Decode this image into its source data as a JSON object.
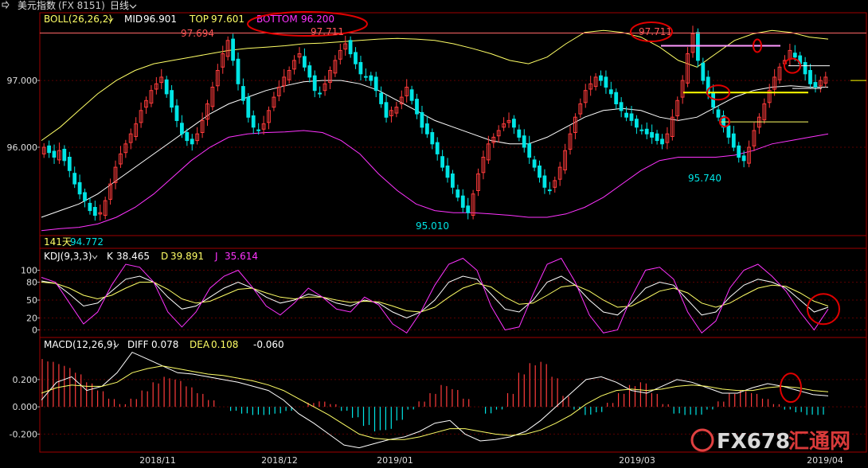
{
  "window": {
    "title": "美元指数",
    "code": "(FX 8151)",
    "period": "日线",
    "back_icon": "back-arrow-icon",
    "dropdown_icon": "chevron-down-icon"
  },
  "watermark": {
    "text": "FX678",
    "subtext": "汇通网"
  },
  "colors": {
    "background": "#000000",
    "up": "#ff3b3b",
    "down": "#00e5e5",
    "boll_mid": "#ffffff",
    "boll_top": "#ffff66",
    "boll_bottom": "#ff33ff",
    "frame": "#b00000",
    "annotation_circle": "#e00000",
    "pink_line": "#ff99ff",
    "yellow_line": "#ffff00"
  },
  "main_panel": {
    "indicator": "BOLL(26,26,2)",
    "mid_label": "MID",
    "mid_value": "96.901",
    "top_label": "TOP",
    "top_value": "97.601",
    "bottom_label": "BOTTOM",
    "bottom_value": "96.200",
    "y_ticks": [
      "97.000",
      "96.000"
    ],
    "annotations": [
      "97.694",
      "97.711",
      "97.711",
      "95.010",
      "95.740"
    ],
    "footer_days": "141天",
    "footer_value": "94.772"
  },
  "kdj_panel": {
    "indicator": "KDJ(9,3,3)",
    "k_label": "K",
    "k_value": "38.465",
    "d_label": "D",
    "d_value": "39.891",
    "j_label": "J",
    "j_value": "35.614",
    "y_ticks": [
      "100",
      "80",
      "50",
      "20",
      "0"
    ]
  },
  "macd_panel": {
    "indicator": "MACD(12,26,9)",
    "diff_label": "DIFF",
    "diff_value": "0.078",
    "dea_label": "DEA",
    "dea_value": "0.108",
    "macd_value": "-0.060",
    "y_ticks": [
      "0.200",
      "0.000",
      "-0.200"
    ]
  },
  "x_axis": {
    "ticks": [
      "2018/11",
      "2018/12",
      "2019/01",
      "2019/03",
      "2019/04"
    ]
  },
  "chart_data": [
    {
      "type": "candlestick",
      "title": "BOLL(26,26,2)",
      "ylim": [
        94.7,
        97.8
      ],
      "close": [
        96.0,
        95.92,
        95.85,
        95.95,
        95.8,
        95.65,
        95.45,
        95.3,
        95.2,
        95.05,
        94.98,
        95.02,
        95.2,
        95.45,
        95.7,
        95.9,
        96.05,
        96.2,
        96.35,
        96.55,
        96.7,
        96.85,
        96.95,
        97.05,
        96.8,
        96.6,
        96.4,
        96.2,
        96.1,
        96.05,
        96.2,
        96.4,
        96.65,
        96.9,
        97.15,
        97.4,
        97.6,
        97.3,
        96.95,
        96.7,
        96.45,
        96.3,
        96.25,
        96.35,
        96.55,
        96.75,
        96.9,
        97.05,
        97.15,
        97.3,
        97.4,
        97.2,
        97.05,
        96.85,
        96.8,
        96.95,
        97.15,
        97.3,
        97.45,
        97.55,
        97.4,
        97.25,
        97.1,
        97.05,
        97.0,
        96.85,
        96.65,
        96.45,
        96.55,
        96.6,
        96.75,
        96.9,
        96.7,
        96.5,
        96.3,
        96.2,
        96.05,
        95.9,
        95.7,
        95.55,
        95.4,
        95.25,
        95.1,
        95.02,
        95.3,
        95.6,
        95.85,
        96.05,
        96.15,
        96.25,
        96.35,
        96.4,
        96.3,
        96.15,
        96.0,
        95.85,
        95.7,
        95.55,
        95.4,
        95.35,
        95.5,
        95.7,
        95.95,
        96.2,
        96.45,
        96.65,
        96.85,
        96.95,
        97.05,
        97.0,
        96.9,
        96.8,
        96.65,
        96.55,
        96.45,
        96.4,
        96.3,
        96.25,
        96.2,
        96.15,
        96.1,
        96.05,
        96.2,
        96.45,
        96.7,
        97.0,
        97.4,
        97.7,
        97.3,
        97.0,
        96.8,
        96.6,
        96.45,
        96.3,
        96.15,
        96.0,
        95.85,
        95.8,
        96.0,
        96.25,
        96.45,
        96.65,
        96.85,
        97.05,
        97.2,
        97.3,
        97.45,
        97.35,
        97.25,
        97.1,
        96.95,
        96.9,
        97.0,
        97.05
      ],
      "boll_top": [
        96.1,
        96.3,
        96.55,
        96.8,
        97.0,
        97.15,
        97.25,
        97.3,
        97.35,
        97.4,
        97.45,
        97.48,
        97.5,
        97.52,
        97.55,
        97.56,
        97.58,
        97.6,
        97.62,
        97.63,
        97.62,
        97.6,
        97.55,
        97.48,
        97.4,
        97.3,
        97.25,
        97.35,
        97.55,
        97.72,
        97.75,
        97.72,
        97.65,
        97.5,
        97.3,
        97.2,
        97.4,
        97.6,
        97.7,
        97.75,
        97.72,
        97.65,
        97.62
      ],
      "boll_mid": [
        94.95,
        95.05,
        95.15,
        95.3,
        95.5,
        95.7,
        95.9,
        96.1,
        96.3,
        96.5,
        96.65,
        96.75,
        96.85,
        96.92,
        96.98,
        97.0,
        97.0,
        96.95,
        96.85,
        96.7,
        96.55,
        96.4,
        96.3,
        96.2,
        96.1,
        96.05,
        96.05,
        96.15,
        96.3,
        96.45,
        96.55,
        96.58,
        96.55,
        96.45,
        96.4,
        96.45,
        96.6,
        96.75,
        96.85,
        96.9,
        96.92,
        96.9,
        96.9
      ],
      "boll_bottom": [
        94.75,
        94.78,
        94.8,
        94.85,
        94.95,
        95.1,
        95.3,
        95.55,
        95.8,
        96.0,
        96.15,
        96.2,
        96.22,
        96.23,
        96.25,
        96.22,
        96.1,
        95.9,
        95.6,
        95.35,
        95.15,
        95.05,
        95.02,
        95.02,
        95.0,
        94.98,
        94.95,
        94.95,
        95.0,
        95.1,
        95.25,
        95.45,
        95.65,
        95.8,
        95.85,
        95.85,
        95.85,
        95.88,
        95.95,
        96.05,
        96.1,
        96.15,
        96.2
      ]
    },
    {
      "type": "line",
      "title": "KDJ(9,3,3)",
      "ylim": [
        -10,
        110
      ],
      "series": [
        {
          "name": "K",
          "values": [
            82,
            78,
            60,
            40,
            45,
            65,
            85,
            90,
            80,
            55,
            35,
            40,
            55,
            70,
            80,
            70,
            55,
            45,
            50,
            60,
            55,
            45,
            40,
            50,
            45,
            30,
            20,
            30,
            50,
            80,
            90,
            85,
            60,
            35,
            30,
            50,
            80,
            90,
            75,
            50,
            30,
            25,
            45,
            70,
            80,
            75,
            50,
            25,
            30,
            55,
            75,
            85,
            80,
            70,
            50,
            30,
            38
          ]
        },
        {
          "name": "D",
          "values": [
            80,
            78,
            70,
            58,
            52,
            58,
            70,
            80,
            80,
            68,
            52,
            45,
            48,
            58,
            68,
            70,
            62,
            55,
            52,
            55,
            55,
            50,
            46,
            48,
            47,
            40,
            32,
            30,
            38,
            55,
            70,
            78,
            72,
            55,
            43,
            45,
            58,
            72,
            75,
            65,
            50,
            38,
            40,
            52,
            65,
            70,
            62,
            45,
            38,
            45,
            58,
            70,
            75,
            73,
            62,
            48,
            40
          ]
        },
        {
          "name": "J",
          "values": [
            88,
            80,
            45,
            10,
            30,
            75,
            110,
            105,
            80,
            30,
            5,
            30,
            70,
            90,
            100,
            72,
            40,
            25,
            45,
            70,
            55,
            35,
            30,
            55,
            42,
            10,
            -5,
            30,
            75,
            110,
            120,
            100,
            40,
            0,
            5,
            60,
            110,
            120,
            80,
            25,
            -5,
            0,
            55,
            100,
            105,
            85,
            30,
            -5,
            15,
            70,
            100,
            110,
            90,
            65,
            30,
            0,
            35
          ]
        }
      ]
    },
    {
      "type": "bar",
      "title": "MACD(12,26,9)",
      "ylim": [
        -0.32,
        0.38
      ],
      "macd_bars": [
        0.35,
        0.33,
        0.3,
        0.25,
        0.18,
        0.12,
        0.06,
        0.02,
        0.06,
        0.12,
        0.18,
        0.22,
        0.2,
        0.15,
        0.1,
        0.05,
        0.0,
        -0.03,
        -0.05,
        -0.06,
        -0.06,
        -0.05,
        -0.03,
        0.0,
        0.03,
        0.04,
        0.02,
        -0.03,
        -0.08,
        -0.14,
        -0.18,
        -0.17,
        -0.1,
        -0.02,
        0.04,
        0.1,
        0.16,
        0.13,
        0.06,
        0.0,
        -0.05,
        -0.02,
        0.1,
        0.25,
        0.32,
        0.33,
        0.22,
        0.08,
        -0.02,
        -0.06,
        -0.04,
        0.03,
        0.1,
        0.16,
        0.18,
        0.1,
        0.02,
        -0.05,
        -0.06,
        -0.06,
        -0.02,
        0.04,
        0.1,
        0.12,
        0.1,
        0.06,
        0.02,
        -0.02,
        -0.04,
        -0.06,
        -0.06
      ],
      "series": [
        {
          "name": "DIFF",
          "values": [
            0.05,
            0.18,
            0.22,
            0.12,
            0.15,
            0.25,
            0.4,
            0.35,
            0.3,
            0.25,
            0.24,
            0.22,
            0.2,
            0.18,
            0.15,
            0.12,
            0.05,
            -0.05,
            -0.12,
            -0.2,
            -0.28,
            -0.3,
            -0.27,
            -0.24,
            -0.22,
            -0.18,
            -0.12,
            -0.1,
            -0.2,
            -0.25,
            -0.24,
            -0.22,
            -0.18,
            -0.1,
            0.0,
            0.1,
            0.2,
            0.22,
            0.18,
            0.12,
            0.1,
            0.15,
            0.2,
            0.18,
            0.14,
            0.1,
            0.1,
            0.14,
            0.17,
            0.15,
            0.12,
            0.09,
            0.08
          ]
        },
        {
          "name": "DEA",
          "values": [
            0.1,
            0.14,
            0.16,
            0.15,
            0.15,
            0.18,
            0.25,
            0.28,
            0.3,
            0.28,
            0.26,
            0.24,
            0.23,
            0.21,
            0.19,
            0.16,
            0.12,
            0.06,
            0.0,
            -0.06,
            -0.13,
            -0.2,
            -0.23,
            -0.24,
            -0.24,
            -0.22,
            -0.19,
            -0.16,
            -0.16,
            -0.18,
            -0.2,
            -0.21,
            -0.2,
            -0.17,
            -0.12,
            -0.06,
            0.02,
            0.08,
            0.12,
            0.13,
            0.12,
            0.13,
            0.15,
            0.16,
            0.15,
            0.13,
            0.12,
            0.12,
            0.14,
            0.15,
            0.14,
            0.12,
            0.11
          ]
        }
      ]
    }
  ]
}
